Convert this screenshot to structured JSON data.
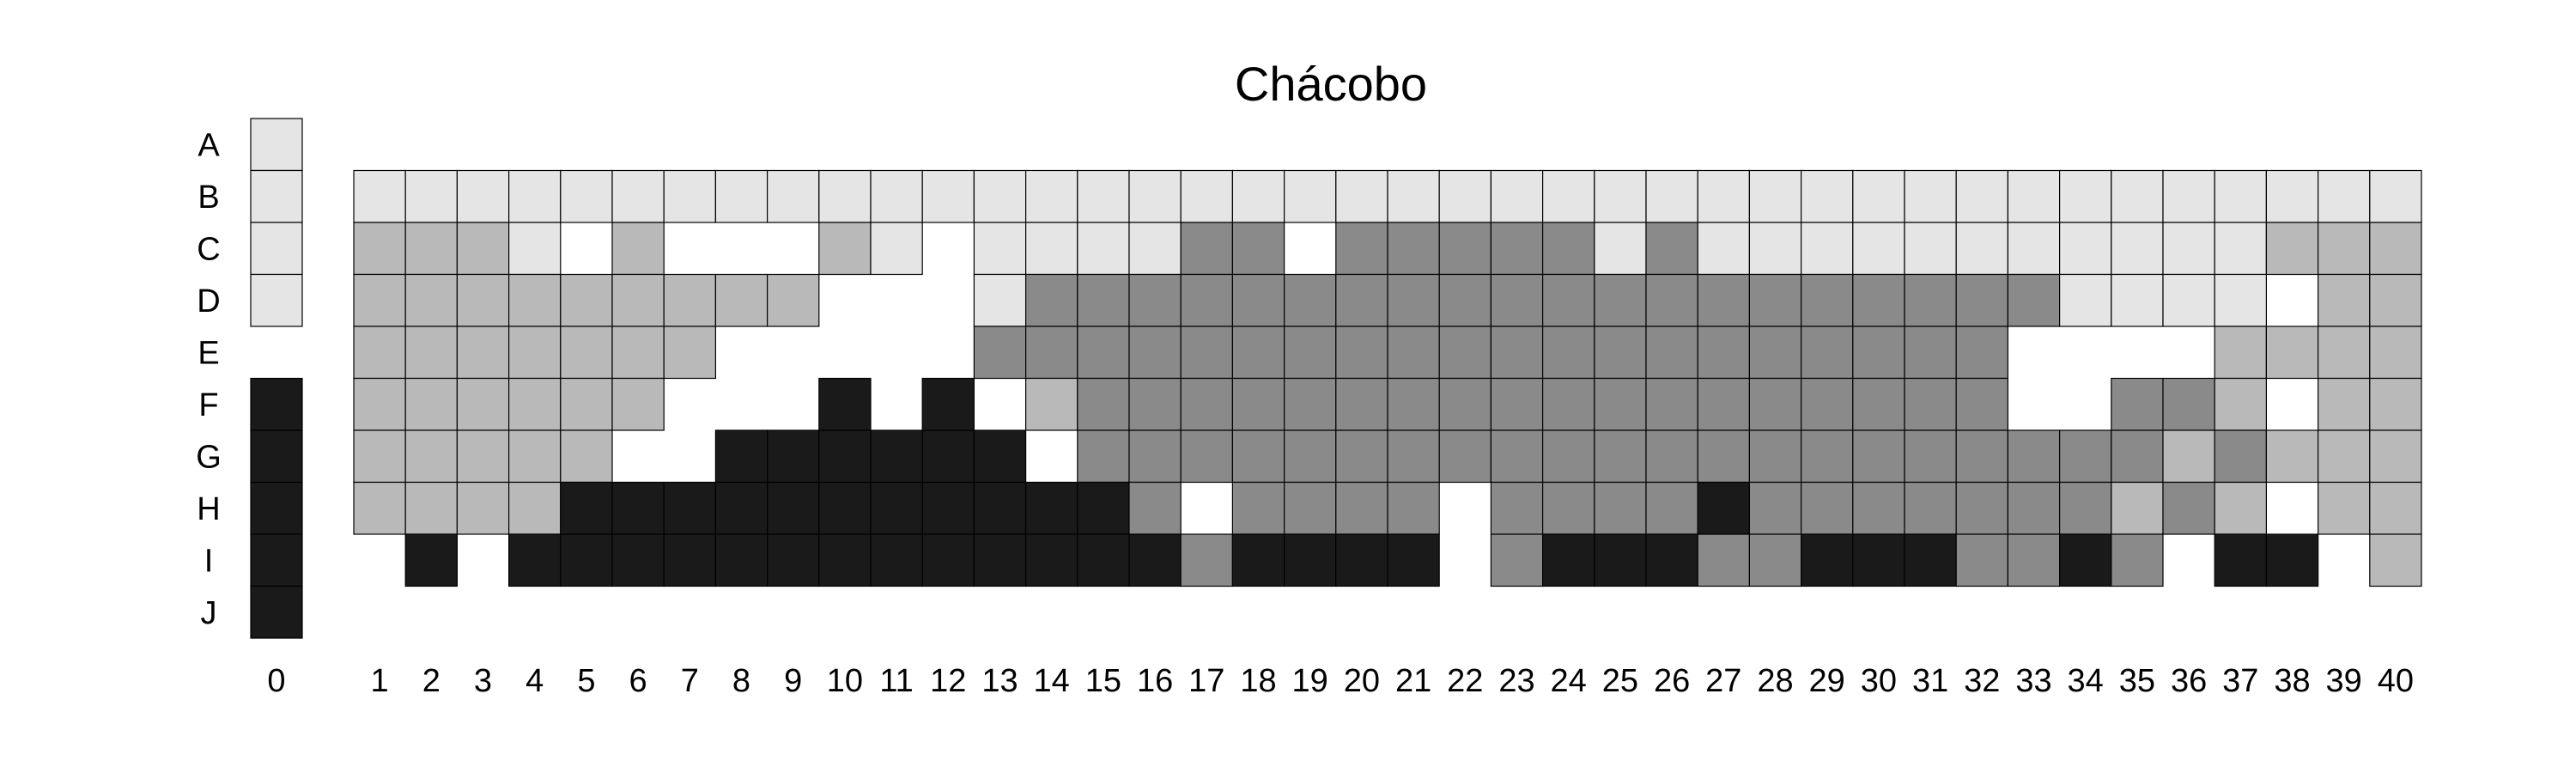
{
  "chart_data": {
    "type": "heatmap",
    "title": "Chácobo",
    "row_labels": [
      "A",
      "B",
      "C",
      "D",
      "E",
      "F",
      "G",
      "H",
      "I",
      "J"
    ],
    "column_labels": [
      "0",
      "1",
      "2",
      "3",
      "4",
      "5",
      "6",
      "7",
      "8",
      "9",
      "10",
      "11",
      "12",
      "13",
      "14",
      "15",
      "16",
      "17",
      "18",
      "19",
      "20",
      "21",
      "22",
      "23",
      "24",
      "25",
      "26",
      "27",
      "28",
      "29",
      "30",
      "31",
      "32",
      "33",
      "34",
      "35",
      "36",
      "37",
      "38",
      "39",
      "40"
    ],
    "palette": {
      "0": "#ffffff",
      "1": "#e5e5e5",
      "2": "#b9b9b9",
      "3": "#8a8a8a",
      "4": "#1a1a1a"
    },
    "border_color": "#000000",
    "hue_zero_column": [
      "1",
      "1",
      "1",
      "1",
      "",
      "4",
      "4",
      "4",
      "4",
      "4"
    ],
    "grid": [
      "........................................",
      "1111111111111111111111111111111111111111",
      "22210200021011113303333313111111111112220",
      "2222222220001333333333333333333331111022",
      "2222222000003333333333333333333300002222",
      "2222220004040233333333333333333300332022",
      "2222200444444033333333333333333333323222",
      "2222444444444443033330333343333333232022",
      "04044444444444443444403444334443343044020",
      "........................................"
    ]
  }
}
